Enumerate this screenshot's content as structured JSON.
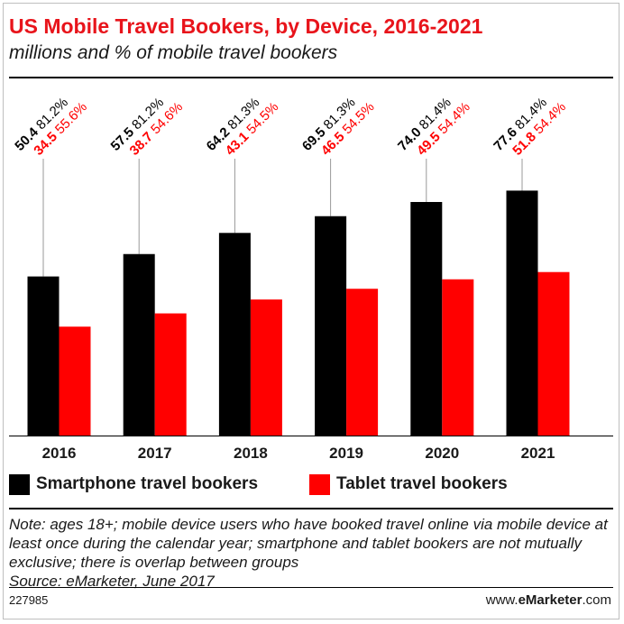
{
  "title": "US Mobile Travel Bookers, by Device, 2016-2021",
  "subtitle": "millions and % of mobile travel bookers",
  "legend": {
    "smartphone": "Smartphone travel bookers",
    "tablet": "Tablet travel bookers"
  },
  "note": "Note: ages 18+; mobile device users who have booked travel online via mobile device at least once during the calendar year; smartphone and tablet bookers are not mutually exclusive; there is overlap between groups",
  "source": "Source: eMarketer, June 2017",
  "chart_id": "227985",
  "brand": {
    "prefix": "www.",
    "name": "eMarketer",
    "suffix": ".com"
  },
  "colors": {
    "smartphone": "#000000",
    "tablet": "#ff0000",
    "title": "#e8141b",
    "gridline": "#999999"
  },
  "chart_data": {
    "type": "bar",
    "title": "US Mobile Travel Bookers, by Device, 2016-2021",
    "subtitle": "millions and % of mobile travel bookers",
    "categories": [
      "2016",
      "2017",
      "2018",
      "2019",
      "2020",
      "2021"
    ],
    "series": [
      {
        "name": "Smartphone travel bookers",
        "values": [
          50.4,
          57.5,
          64.2,
          69.5,
          74.0,
          77.6
        ],
        "labels": [
          "50.4",
          "57.5",
          "64.2",
          "69.5",
          "74.0",
          "77.6"
        ],
        "percent_labels": [
          "81.2%",
          "81.2%",
          "81.3%",
          "81.3%",
          "81.4%",
          "81.4%"
        ]
      },
      {
        "name": "Tablet travel bookers",
        "values": [
          34.5,
          38.7,
          43.1,
          46.5,
          49.5,
          51.8
        ],
        "labels": [
          "34.5",
          "38.7",
          "43.1",
          "46.5",
          "49.5",
          "51.8"
        ],
        "percent_labels": [
          "55.6%",
          "54.6%",
          "54.5%",
          "54.5%",
          "54.4%",
          "54.4%"
        ]
      }
    ],
    "ylim": [
      0,
      110
    ],
    "grid": false,
    "legend_position": "bottom-left",
    "data_labels": "rotated above bars"
  }
}
